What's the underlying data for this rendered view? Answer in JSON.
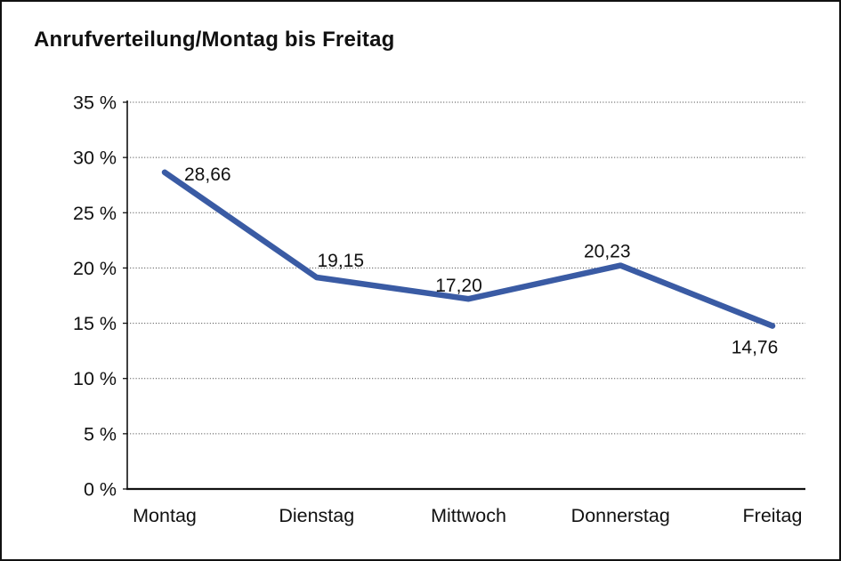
{
  "chart_data": {
    "type": "line",
    "title": "Anrufverteilung/Montag bis Freitag",
    "categories": [
      "Montag",
      "Dienstag",
      "Mittwoch",
      "Donnerstag",
      "Freitag"
    ],
    "values": [
      28.66,
      19.15,
      17.2,
      20.23,
      14.76
    ],
    "value_labels": [
      "28,66",
      "19,15",
      "17,20",
      "20,23",
      "14,76"
    ],
    "y_tick_values": [
      0,
      5,
      10,
      15,
      20,
      25,
      30,
      35
    ],
    "y_tick_labels": [
      "0 %",
      "5 %",
      "10 %",
      "15 %",
      "20 %",
      "25 %",
      "30 %",
      "35 %"
    ],
    "ylim": [
      0,
      35
    ],
    "grid": "horizontal-dotted",
    "legend_position": "none",
    "line_color": "#3A5BA4",
    "axis_color": "#111111",
    "text_color": "#111111"
  }
}
